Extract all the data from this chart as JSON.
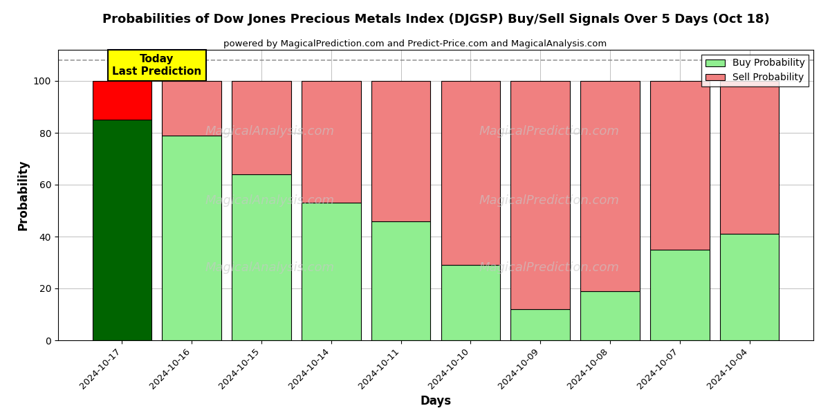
{
  "title": "Probabilities of Dow Jones Precious Metals Index (DJGSP) Buy/Sell Signals Over 5 Days (Oct 18)",
  "subtitle": "powered by MagicalPrediction.com and Predict-Price.com and MagicalAnalysis.com",
  "xlabel": "Days",
  "ylabel": "Probability",
  "categories": [
    "2024-10-17",
    "2024-10-16",
    "2024-10-15",
    "2024-10-14",
    "2024-10-11",
    "2024-10-10",
    "2024-10-09",
    "2024-10-08",
    "2024-10-07",
    "2024-10-04"
  ],
  "buy_values": [
    85,
    79,
    64,
    53,
    46,
    29,
    12,
    19,
    35,
    41
  ],
  "sell_values": [
    15,
    21,
    36,
    47,
    54,
    71,
    88,
    81,
    65,
    59
  ],
  "today_buy_color": "#006400",
  "today_sell_color": "#ff0000",
  "buy_color": "#90EE90",
  "sell_color": "#F08080",
  "today_annotation": "Today\nLast Prediction",
  "ylim": [
    0,
    112
  ],
  "yticks": [
    0,
    20,
    40,
    60,
    80,
    100
  ],
  "dashed_line_y": 108,
  "background_color": "#ffffff",
  "legend_buy_label": "Buy Probability",
  "legend_sell_label": "Sell Probability"
}
